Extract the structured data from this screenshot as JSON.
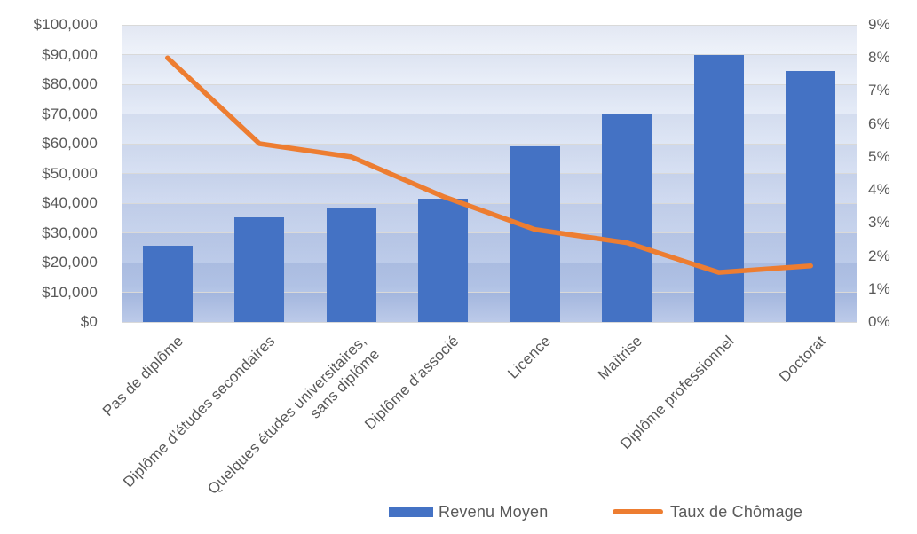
{
  "chart_data": {
    "type": "bar",
    "subtype": "combo-bar-line-dual-axis",
    "title": "",
    "categories": [
      "Pas de diplôme",
      "Diplôme d’études secondaires",
      "Quelques études universitaires,\nsans diplôme",
      "Diplôme d’associé",
      "Licence",
      "Maîtrise",
      "Diplôme professionnel",
      "Doctorat"
    ],
    "series": [
      {
        "name": "Revenu Moyen",
        "type": "bar",
        "axis": "left",
        "color": "#4472C4",
        "values": [
          25636,
          35256,
          38376,
          41496,
          59124,
          69732,
          89960,
          84396
        ]
      },
      {
        "name": "Taux de Chômage",
        "type": "line",
        "axis": "right",
        "color": "#ED7D31",
        "values": [
          8.0,
          5.4,
          5.0,
          3.8,
          2.8,
          2.4,
          1.5,
          1.7
        ]
      }
    ],
    "left_axis": {
      "min": 0,
      "max": 100000,
      "tick_labels": [
        "$100,000",
        "$90,000",
        "$80,000",
        "$70,000",
        "$60,000",
        "$50,000",
        "$40,000",
        "$30,000",
        "$20,000",
        "$10,000",
        "$0"
      ]
    },
    "right_axis": {
      "min": 0,
      "max": 9,
      "tick_labels": [
        "9%",
        "8%",
        "7%",
        "6%",
        "5%",
        "4%",
        "3%",
        "2%",
        "1%",
        "0%"
      ]
    },
    "grid": "horizontal",
    "legend_position": "bottom",
    "legend": [
      {
        "label": "Revenu Moyen",
        "swatch": "bar",
        "color": "#4472C4"
      },
      {
        "label": "Taux de Chômage",
        "swatch": "line",
        "color": "#ED7D31"
      }
    ]
  },
  "colors": {
    "text": "#595959",
    "gridline": "#d9d9d9",
    "bar": "#4472C4",
    "line": "#ED7D31",
    "plot_bg_top": "#f2f5fb",
    "plot_bg_bottom": "#b3c3e6",
    "canvas": "#ffffff"
  }
}
